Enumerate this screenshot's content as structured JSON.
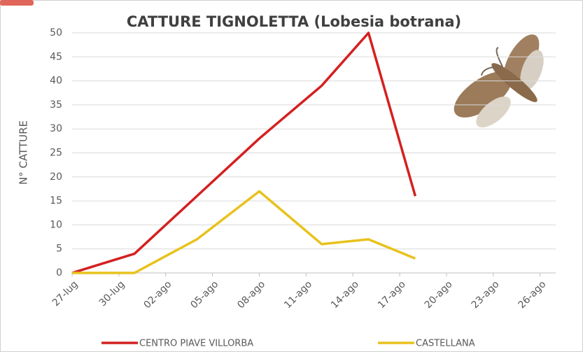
{
  "chart_data": {
    "type": "line",
    "title": "CATTURE TIGNOLETTA (Lobesia botrana)",
    "y_label": "N° CATTURE",
    "x": [
      0,
      4,
      8,
      12,
      16,
      19,
      22
    ],
    "series": [
      {
        "name": "CENTRO PIAVE VILLORBA",
        "color": "#d42020",
        "values": [
          0,
          4,
          16,
          28,
          39,
          50,
          16
        ]
      },
      {
        "name": "CASTELLANA",
        "color": "#e8c21c",
        "values": [
          0,
          0,
          7,
          17,
          6,
          7,
          3
        ]
      }
    ],
    "xlim": [
      0,
      31
    ],
    "xticks": [
      {
        "value": 0,
        "label": "27-lug"
      },
      {
        "value": 3,
        "label": "30-lug"
      },
      {
        "value": 6,
        "label": "02-ago"
      },
      {
        "value": 9,
        "label": "05-ago"
      },
      {
        "value": 12,
        "label": "08-ago"
      },
      {
        "value": 15,
        "label": "11-ago"
      },
      {
        "value": 18,
        "label": "14-ago"
      },
      {
        "value": 21,
        "label": "17-ago"
      },
      {
        "value": 24,
        "label": "20-ago"
      },
      {
        "value": 27,
        "label": "23-ago"
      },
      {
        "value": 30,
        "label": "26-ago"
      }
    ],
    "ylim": [
      0,
      50
    ],
    "yticks": [
      0,
      5,
      10,
      15,
      20,
      25,
      30,
      35,
      40,
      45,
      50
    ],
    "grid": true
  }
}
